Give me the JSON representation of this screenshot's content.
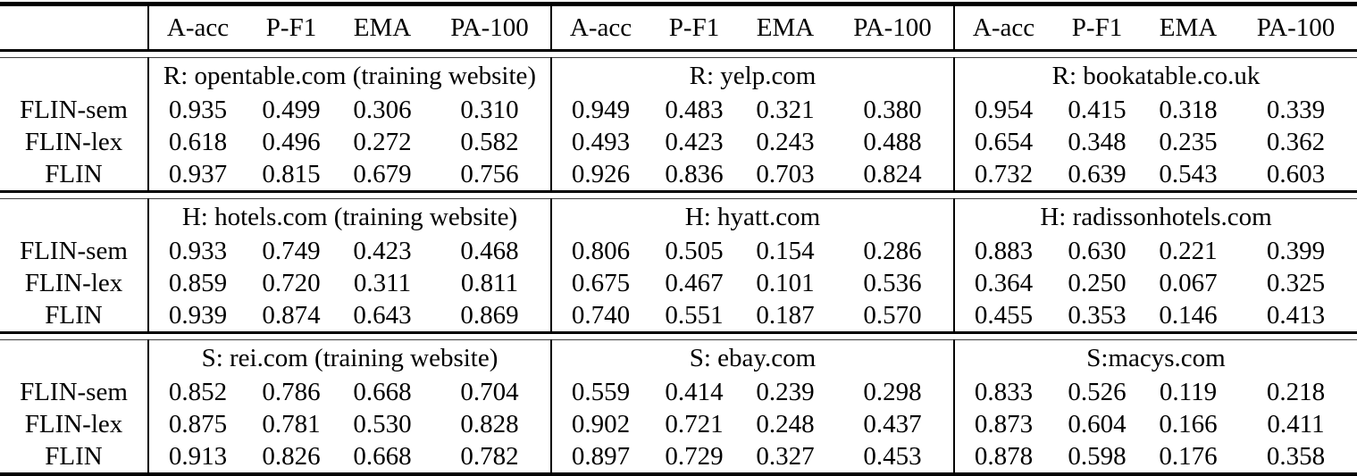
{
  "table": {
    "metric_headers": [
      "A-acc",
      "P-F1",
      "EMA",
      "PA-100"
    ],
    "row_labels": [
      "FLIN-sem",
      "FLIN-lex",
      "FLIN"
    ],
    "blocks": [
      {
        "groups": [
          {
            "title": "R: opentable.com (training website)",
            "rows": [
              {
                "values": [
                  "0.935",
                  "0.499",
                  "0.306",
                  "0.310"
                ],
                "bold": [
                  false,
                  false,
                  false,
                  false
                ]
              },
              {
                "values": [
                  "0.618",
                  "0.496",
                  "0.272",
                  "0.582"
                ],
                "bold": [
                  false,
                  false,
                  false,
                  false
                ]
              },
              {
                "values": [
                  "0.937",
                  "0.815",
                  "0.679",
                  "0.756"
                ],
                "bold": [
                  true,
                  true,
                  true,
                  true
                ]
              }
            ]
          },
          {
            "title": "R: yelp.com",
            "rows": [
              {
                "values": [
                  "0.949",
                  "0.483",
                  "0.321",
                  "0.380"
                ],
                "bold": [
                  true,
                  false,
                  false,
                  false
                ]
              },
              {
                "values": [
                  "0.493",
                  "0.423",
                  "0.243",
                  "0.488"
                ],
                "bold": [
                  false,
                  false,
                  false,
                  false
                ]
              },
              {
                "values": [
                  "0.926",
                  "0.836",
                  "0.703",
                  "0.824"
                ],
                "bold": [
                  false,
                  true,
                  true,
                  true
                ]
              }
            ]
          },
          {
            "title": "R: bookatable.co.uk",
            "rows": [
              {
                "values": [
                  "0.954",
                  "0.415",
                  "0.318",
                  "0.339"
                ],
                "bold": [
                  true,
                  false,
                  false,
                  false
                ]
              },
              {
                "values": [
                  "0.654",
                  "0.348",
                  "0.235",
                  "0.362"
                ],
                "bold": [
                  false,
                  false,
                  false,
                  false
                ]
              },
              {
                "values": [
                  "0.732",
                  "0.639",
                  "0.543",
                  "0.603"
                ],
                "bold": [
                  false,
                  true,
                  true,
                  true
                ]
              }
            ]
          }
        ]
      },
      {
        "groups": [
          {
            "title": "H: hotels.com (training website)",
            "rows": [
              {
                "values": [
                  "0.933",
                  "0.749",
                  "0.423",
                  "0.468"
                ],
                "bold": [
                  false,
                  false,
                  false,
                  false
                ]
              },
              {
                "values": [
                  "0.859",
                  "0.720",
                  "0.311",
                  "0.811"
                ],
                "bold": [
                  false,
                  false,
                  false,
                  false
                ]
              },
              {
                "values": [
                  "0.939",
                  "0.874",
                  "0.643",
                  "0.869"
                ],
                "bold": [
                  true,
                  true,
                  true,
                  true
                ]
              }
            ]
          },
          {
            "title": "H: hyatt.com",
            "rows": [
              {
                "values": [
                  "0.806",
                  "0.505",
                  "0.154",
                  "0.286"
                ],
                "bold": [
                  true,
                  false,
                  false,
                  false
                ]
              },
              {
                "values": [
                  "0.675",
                  "0.467",
                  "0.101",
                  "0.536"
                ],
                "bold": [
                  false,
                  false,
                  false,
                  false
                ]
              },
              {
                "values": [
                  "0.740",
                  "0.551",
                  "0.187",
                  "0.570"
                ],
                "bold": [
                  false,
                  true,
                  true,
                  true
                ]
              }
            ]
          },
          {
            "title": "H: radissonhotels.com",
            "rows": [
              {
                "values": [
                  "0.883",
                  "0.630",
                  "0.221",
                  "0.399"
                ],
                "bold": [
                  true,
                  true,
                  true,
                  false
                ]
              },
              {
                "values": [
                  "0.364",
                  "0.250",
                  "0.067",
                  "0.325"
                ],
                "bold": [
                  false,
                  false,
                  false,
                  false
                ]
              },
              {
                "values": [
                  "0.455",
                  "0.353",
                  "0.146",
                  "0.413"
                ],
                "bold": [
                  false,
                  false,
                  false,
                  true
                ]
              }
            ]
          }
        ]
      },
      {
        "groups": [
          {
            "title": "S: rei.com (training website)",
            "rows": [
              {
                "values": [
                  "0.852",
                  "0.786",
                  "0.668",
                  "0.704"
                ],
                "bold": [
                  false,
                  false,
                  true,
                  false
                ]
              },
              {
                "values": [
                  "0.875",
                  "0.781",
                  "0.530",
                  "0.828"
                ],
                "bold": [
                  false,
                  false,
                  false,
                  true
                ]
              },
              {
                "values": [
                  "0.913",
                  "0.826",
                  "0.668",
                  "0.782"
                ],
                "bold": [
                  true,
                  true,
                  true,
                  false
                ]
              }
            ]
          },
          {
            "title": "S: ebay.com",
            "rows": [
              {
                "values": [
                  "0.559",
                  "0.414",
                  "0.239",
                  "0.298"
                ],
                "bold": [
                  false,
                  false,
                  false,
                  false
                ]
              },
              {
                "values": [
                  "0.902",
                  "0.721",
                  "0.248",
                  "0.437"
                ],
                "bold": [
                  true,
                  false,
                  false,
                  false
                ]
              },
              {
                "values": [
                  "0.897",
                  "0.729",
                  "0.327",
                  "0.453"
                ],
                "bold": [
                  false,
                  true,
                  true,
                  true
                ]
              }
            ]
          },
          {
            "title": "S:macys.com",
            "rows": [
              {
                "values": [
                  "0.833",
                  "0.526",
                  "0.119",
                  "0.218"
                ],
                "bold": [
                  false,
                  false,
                  false,
                  false
                ]
              },
              {
                "values": [
                  "0.873",
                  "0.604",
                  "0.166",
                  "0.411"
                ],
                "bold": [
                  false,
                  true,
                  false,
                  true
                ]
              },
              {
                "values": [
                  "0.878",
                  "0.598",
                  "0.176",
                  "0.358"
                ],
                "bold": [
                  true,
                  false,
                  true,
                  false
                ]
              }
            ]
          }
        ]
      }
    ]
  }
}
